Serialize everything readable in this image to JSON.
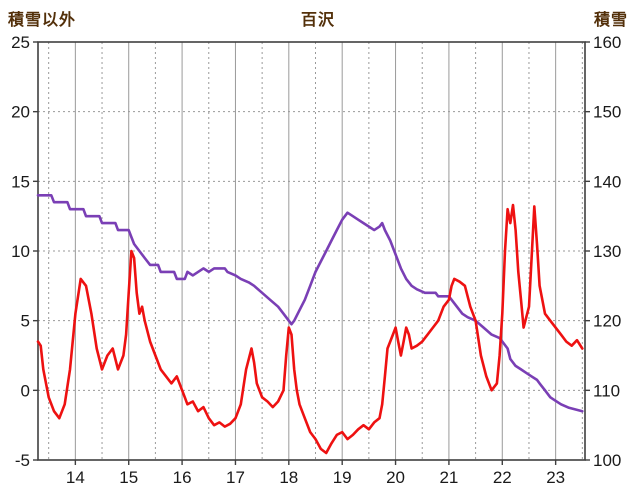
{
  "header": {
    "left_axis_title": "積雪以外",
    "title": "百沢",
    "right_axis_title": "積雪"
  },
  "colors": {
    "grid": "#9a9a9a",
    "border": "#3f3f3f",
    "tick_text": "#1a1a1a",
    "header_text": "#53300a"
  },
  "chart_data": {
    "type": "line",
    "title": "百沢",
    "grid": true,
    "x_axis": {
      "min": 13.3,
      "max": 23.55,
      "ticks": [
        14,
        15,
        16,
        17,
        18,
        19,
        20,
        21,
        22,
        23
      ]
    },
    "left_axis": {
      "label": "積雪以外",
      "min": -5,
      "max": 25,
      "ticks": [
        25,
        20,
        15,
        10,
        5,
        0,
        -5
      ]
    },
    "right_axis": {
      "label": "積雪",
      "min": 100,
      "max": 160,
      "ticks": [
        160,
        150,
        140,
        130,
        120,
        110,
        100
      ]
    },
    "series": [
      {
        "name": "積雪",
        "axis": "right",
        "color": "#7a3fb5",
        "points": [
          [
            13.3,
            138
          ],
          [
            13.55,
            138
          ],
          [
            13.6,
            137
          ],
          [
            13.85,
            137
          ],
          [
            13.9,
            136
          ],
          [
            14.15,
            136
          ],
          [
            14.2,
            135
          ],
          [
            14.45,
            135
          ],
          [
            14.5,
            134
          ],
          [
            14.75,
            134
          ],
          [
            14.8,
            133
          ],
          [
            15.0,
            133
          ],
          [
            15.05,
            132
          ],
          [
            15.1,
            131
          ],
          [
            15.2,
            130
          ],
          [
            15.3,
            129
          ],
          [
            15.4,
            128
          ],
          [
            15.55,
            128
          ],
          [
            15.6,
            127
          ],
          [
            15.85,
            127
          ],
          [
            15.9,
            126
          ],
          [
            16.05,
            126
          ],
          [
            16.1,
            127
          ],
          [
            16.2,
            126.5
          ],
          [
            16.3,
            127
          ],
          [
            16.4,
            127.5
          ],
          [
            16.5,
            127
          ],
          [
            16.6,
            127.5
          ],
          [
            16.8,
            127.5
          ],
          [
            16.85,
            127
          ],
          [
            17.0,
            126.5
          ],
          [
            17.1,
            126
          ],
          [
            17.25,
            125.5
          ],
          [
            17.35,
            125
          ],
          [
            17.5,
            124
          ],
          [
            17.65,
            123
          ],
          [
            17.8,
            122
          ],
          [
            17.9,
            121
          ],
          [
            18.0,
            120
          ],
          [
            18.05,
            119.5
          ],
          [
            18.1,
            120
          ],
          [
            18.2,
            121.5
          ],
          [
            18.3,
            123
          ],
          [
            18.4,
            125
          ],
          [
            18.5,
            127
          ],
          [
            18.6,
            128.5
          ],
          [
            18.7,
            130
          ],
          [
            18.8,
            131.5
          ],
          [
            18.9,
            133
          ],
          [
            19.0,
            134.5
          ],
          [
            19.1,
            135.5
          ],
          [
            19.2,
            135
          ],
          [
            19.3,
            134.5
          ],
          [
            19.4,
            134
          ],
          [
            19.5,
            133.5
          ],
          [
            19.6,
            133
          ],
          [
            19.7,
            133.5
          ],
          [
            19.75,
            134
          ],
          [
            19.8,
            133
          ],
          [
            19.9,
            131.5
          ],
          [
            20.0,
            129.5
          ],
          [
            20.1,
            127.5
          ],
          [
            20.2,
            126
          ],
          [
            20.3,
            125
          ],
          [
            20.4,
            124.5
          ],
          [
            20.55,
            124
          ],
          [
            20.75,
            124
          ],
          [
            20.8,
            123.5
          ],
          [
            21.0,
            123.5
          ],
          [
            21.05,
            123
          ],
          [
            21.15,
            122
          ],
          [
            21.25,
            121
          ],
          [
            21.35,
            120.5
          ],
          [
            21.5,
            120
          ],
          [
            21.65,
            119
          ],
          [
            21.8,
            118
          ],
          [
            21.95,
            117.5
          ],
          [
            22.0,
            117
          ],
          [
            22.1,
            116
          ],
          [
            22.15,
            114.5
          ],
          [
            22.25,
            113.5
          ],
          [
            22.35,
            113
          ],
          [
            22.45,
            112.5
          ],
          [
            22.55,
            112
          ],
          [
            22.65,
            111.5
          ],
          [
            22.7,
            111
          ],
          [
            22.8,
            110
          ],
          [
            22.9,
            109
          ],
          [
            23.0,
            108.5
          ],
          [
            23.1,
            108
          ],
          [
            23.25,
            107.5
          ],
          [
            23.5,
            107
          ]
        ]
      },
      {
        "name": "積雪以外",
        "axis": "left",
        "color": "#ee1111",
        "points": [
          [
            13.3,
            3.5
          ],
          [
            13.35,
            3.2
          ],
          [
            13.4,
            1.5
          ],
          [
            13.5,
            -0.5
          ],
          [
            13.6,
            -1.5
          ],
          [
            13.7,
            -2.0
          ],
          [
            13.8,
            -1.0
          ],
          [
            13.9,
            1.5
          ],
          [
            14.0,
            5.5
          ],
          [
            14.1,
            8.0
          ],
          [
            14.2,
            7.5
          ],
          [
            14.3,
            5.5
          ],
          [
            14.4,
            3.0
          ],
          [
            14.5,
            1.5
          ],
          [
            14.6,
            2.5
          ],
          [
            14.7,
            3.0
          ],
          [
            14.8,
            1.5
          ],
          [
            14.9,
            2.5
          ],
          [
            14.95,
            4.0
          ],
          [
            15.0,
            7.0
          ],
          [
            15.05,
            10.0
          ],
          [
            15.1,
            9.5
          ],
          [
            15.15,
            7.0
          ],
          [
            15.2,
            5.5
          ],
          [
            15.25,
            6.0
          ],
          [
            15.3,
            5.0
          ],
          [
            15.4,
            3.5
          ],
          [
            15.5,
            2.5
          ],
          [
            15.6,
            1.5
          ],
          [
            15.7,
            1.0
          ],
          [
            15.8,
            0.5
          ],
          [
            15.9,
            1.0
          ],
          [
            16.0,
            0.0
          ],
          [
            16.05,
            -0.5
          ],
          [
            16.1,
            -1.0
          ],
          [
            16.2,
            -0.8
          ],
          [
            16.3,
            -1.5
          ],
          [
            16.4,
            -1.2
          ],
          [
            16.5,
            -2.0
          ],
          [
            16.6,
            -2.5
          ],
          [
            16.7,
            -2.3
          ],
          [
            16.8,
            -2.6
          ],
          [
            16.9,
            -2.4
          ],
          [
            17.0,
            -2.0
          ],
          [
            17.1,
            -1.0
          ],
          [
            17.2,
            1.5
          ],
          [
            17.3,
            3.0
          ],
          [
            17.35,
            2.0
          ],
          [
            17.4,
            0.5
          ],
          [
            17.5,
            -0.5
          ],
          [
            17.6,
            -0.8
          ],
          [
            17.7,
            -1.2
          ],
          [
            17.8,
            -0.8
          ],
          [
            17.9,
            0.0
          ],
          [
            17.95,
            2.5
          ],
          [
            18.0,
            4.5
          ],
          [
            18.05,
            4.0
          ],
          [
            18.1,
            1.5
          ],
          [
            18.15,
            0.0
          ],
          [
            18.2,
            -1.0
          ],
          [
            18.3,
            -2.0
          ],
          [
            18.4,
            -3.0
          ],
          [
            18.5,
            -3.5
          ],
          [
            18.6,
            -4.2
          ],
          [
            18.7,
            -4.5
          ],
          [
            18.8,
            -3.8
          ],
          [
            18.9,
            -3.2
          ],
          [
            19.0,
            -3.0
          ],
          [
            19.1,
            -3.5
          ],
          [
            19.2,
            -3.2
          ],
          [
            19.3,
            -2.8
          ],
          [
            19.4,
            -2.5
          ],
          [
            19.5,
            -2.8
          ],
          [
            19.6,
            -2.3
          ],
          [
            19.7,
            -2.0
          ],
          [
            19.75,
            -1.0
          ],
          [
            19.8,
            1.0
          ],
          [
            19.85,
            3.0
          ],
          [
            19.9,
            3.5
          ],
          [
            20.0,
            4.5
          ],
          [
            20.05,
            3.5
          ],
          [
            20.1,
            2.5
          ],
          [
            20.15,
            3.5
          ],
          [
            20.2,
            4.5
          ],
          [
            20.25,
            4.0
          ],
          [
            20.3,
            3.0
          ],
          [
            20.4,
            3.2
          ],
          [
            20.5,
            3.5
          ],
          [
            20.6,
            4.0
          ],
          [
            20.7,
            4.5
          ],
          [
            20.8,
            5.0
          ],
          [
            20.9,
            6.0
          ],
          [
            21.0,
            6.5
          ],
          [
            21.05,
            7.5
          ],
          [
            21.1,
            8.0
          ],
          [
            21.2,
            7.8
          ],
          [
            21.3,
            7.5
          ],
          [
            21.4,
            6.0
          ],
          [
            21.5,
            5.0
          ],
          [
            21.6,
            2.5
          ],
          [
            21.7,
            1.0
          ],
          [
            21.8,
            0.0
          ],
          [
            21.9,
            0.5
          ],
          [
            21.95,
            2.5
          ],
          [
            22.0,
            5.5
          ],
          [
            22.05,
            10.0
          ],
          [
            22.1,
            13.0
          ],
          [
            22.15,
            12.0
          ],
          [
            22.2,
            13.3
          ],
          [
            22.25,
            11.5
          ],
          [
            22.3,
            8.5
          ],
          [
            22.35,
            6.5
          ],
          [
            22.4,
            4.5
          ],
          [
            22.5,
            6.0
          ],
          [
            22.55,
            9.5
          ],
          [
            22.6,
            13.2
          ],
          [
            22.65,
            10.5
          ],
          [
            22.7,
            7.5
          ],
          [
            22.8,
            5.5
          ],
          [
            22.9,
            5.0
          ],
          [
            23.0,
            4.5
          ],
          [
            23.1,
            4.0
          ],
          [
            23.2,
            3.5
          ],
          [
            23.3,
            3.2
          ],
          [
            23.4,
            3.6
          ],
          [
            23.5,
            3.0
          ]
        ]
      }
    ]
  }
}
